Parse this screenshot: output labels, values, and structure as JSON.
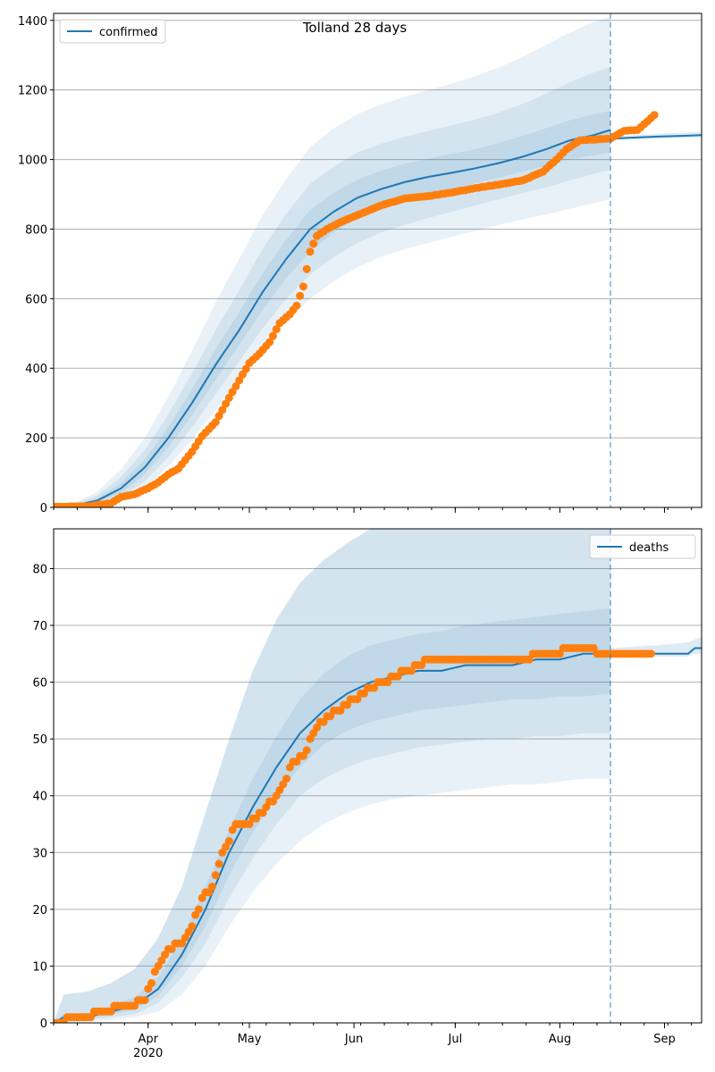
{
  "figure_title": "Tolland 28 days",
  "colors": {
    "model_line": "#1f77b4",
    "observed_points": "#ff7f0e",
    "band": "#1f77b4",
    "grid": "#b0b0b0",
    "forecast_marker": "#1f77b4"
  },
  "chart_data": [
    {
      "type": "line",
      "title": "",
      "xlabel": "",
      "ylabel": "",
      "x_axis": {
        "type": "date",
        "range": [
          "2020-03-04",
          "2020-09-12"
        ],
        "tick_labels": [
          "Apr",
          "May",
          "Jun",
          "Jul",
          "Aug",
          "Sep"
        ],
        "tick_dates": [
          "2020-04-01",
          "2020-05-01",
          "2020-06-01",
          "2020-07-01",
          "2020-08-01",
          "2020-09-01"
        ],
        "year_label": "2020",
        "forecast_start": "2020-08-16"
      },
      "ylim": [
        0,
        1420
      ],
      "y_ticks": [
        0,
        200,
        400,
        600,
        800,
        1000,
        1200,
        1400
      ],
      "grid": "horizontal",
      "legend": {
        "placement": "top-left",
        "entries": [
          "confirmed"
        ]
      },
      "model": {
        "name": "confirmed",
        "x": [
          "2020-03-04",
          "2020-03-10",
          "2020-03-17",
          "2020-03-24",
          "2020-03-31",
          "2020-04-07",
          "2020-04-14",
          "2020-04-21",
          "2020-04-28",
          "2020-05-05",
          "2020-05-12",
          "2020-05-19",
          "2020-05-26",
          "2020-06-02",
          "2020-06-09",
          "2020-06-16",
          "2020-06-23",
          "2020-06-30",
          "2020-07-07",
          "2020-07-14",
          "2020-07-21",
          "2020-07-28",
          "2020-08-04",
          "2020-08-11",
          "2020-08-16"
        ],
        "mid": [
          0,
          5,
          20,
          55,
          115,
          200,
          300,
          410,
          510,
          620,
          715,
          800,
          850,
          890,
          915,
          935,
          950,
          962,
          975,
          990,
          1008,
          1030,
          1055,
          1070,
          1085
        ],
        "band1": {
          "low": [
            0,
            3,
            14,
            42,
            95,
            172,
            265,
            368,
            468,
            568,
            660,
            735,
            790,
            832,
            860,
            882,
            900,
            915,
            932,
            948,
            965,
            982,
            1000,
            1012,
            1020
          ],
          "high": [
            0,
            7,
            27,
            70,
            138,
            232,
            340,
            455,
            562,
            675,
            770,
            855,
            905,
            942,
            968,
            988,
            1002,
            1016,
            1030,
            1048,
            1068,
            1090,
            1113,
            1130,
            1140
          ]
        },
        "band2": {
          "low": [
            0,
            2,
            9,
            30,
            75,
            145,
            230,
            325,
            420,
            515,
            600,
            670,
            720,
            760,
            790,
            812,
            832,
            850,
            868,
            886,
            904,
            920,
            940,
            958,
            970
          ],
          "high": [
            0,
            9,
            35,
            88,
            165,
            268,
            385,
            510,
            625,
            745,
            845,
            930,
            980,
            1020,
            1045,
            1065,
            1082,
            1098,
            1115,
            1135,
            1160,
            1190,
            1222,
            1250,
            1265
          ]
        },
        "band3": {
          "low": [
            0,
            1,
            5,
            20,
            55,
            118,
            195,
            280,
            370,
            455,
            535,
            600,
            650,
            690,
            720,
            742,
            760,
            778,
            795,
            812,
            828,
            842,
            858,
            875,
            885
          ],
          "high": [
            0,
            12,
            45,
            110,
            200,
            318,
            450,
            590,
            715,
            840,
            945,
            1035,
            1090,
            1130,
            1158,
            1180,
            1200,
            1218,
            1240,
            1265,
            1295,
            1330,
            1365,
            1395,
            1410
          ]
        }
      },
      "projection": {
        "x": [
          "2020-08-16",
          "2020-08-23",
          "2020-08-30",
          "2020-09-06",
          "2020-09-12"
        ],
        "value": [
          1060,
          1063,
          1066,
          1068,
          1070
        ],
        "low": [
          1055,
          1058,
          1060,
          1062,
          1063
        ],
        "high": [
          1066,
          1070,
          1074,
          1077,
          1080
        ]
      },
      "observed": {
        "x": [
          "2020-03-04",
          "2020-03-14",
          "2020-03-21",
          "2020-03-24",
          "2020-03-28",
          "2020-04-01",
          "2020-04-04",
          "2020-04-07",
          "2020-04-10",
          "2020-04-14",
          "2020-04-17",
          "2020-04-21",
          "2020-04-24",
          "2020-04-28",
          "2020-05-01",
          "2020-05-04",
          "2020-05-07",
          "2020-05-10",
          "2020-05-13",
          "2020-05-15",
          "2020-05-17",
          "2020-05-19",
          "2020-05-21",
          "2020-05-24",
          "2020-05-28",
          "2020-06-02",
          "2020-06-09",
          "2020-06-16",
          "2020-06-23",
          "2020-06-30",
          "2020-07-07",
          "2020-07-14",
          "2020-07-21",
          "2020-07-27",
          "2020-07-31",
          "2020-08-03",
          "2020-08-07",
          "2020-08-12",
          "2020-08-16",
          "2020-08-20",
          "2020-08-24",
          "2020-08-27",
          "2020-08-29"
        ],
        "y": [
          2,
          3,
          12,
          30,
          38,
          55,
          72,
          95,
          112,
          160,
          205,
          245,
          298,
          365,
          415,
          442,
          475,
          530,
          555,
          580,
          635,
          735,
          780,
          800,
          820,
          840,
          868,
          888,
          895,
          905,
          918,
          928,
          940,
          965,
          1000,
          1030,
          1055,
          1058,
          1060,
          1082,
          1085,
          1110,
          1128
        ]
      }
    },
    {
      "type": "line",
      "title": "",
      "xlabel": "",
      "ylabel": "",
      "x_axis": {
        "type": "date",
        "range": [
          "2020-03-04",
          "2020-09-12"
        ],
        "tick_labels": [
          "Apr",
          "May",
          "Jun",
          "Jul",
          "Aug",
          "Sep"
        ],
        "tick_dates": [
          "2020-04-01",
          "2020-05-01",
          "2020-06-01",
          "2020-07-01",
          "2020-08-01",
          "2020-09-01"
        ],
        "year_label": "2020",
        "forecast_start": "2020-08-16"
      },
      "ylim": [
        0,
        87
      ],
      "y_ticks": [
        0,
        10,
        20,
        30,
        40,
        50,
        60,
        70,
        80
      ],
      "grid": "horizontal",
      "legend": {
        "placement": "top-right",
        "entries": [
          "deaths"
        ]
      },
      "model": {
        "name": "deaths",
        "x": [
          "2020-03-04",
          "2020-03-07",
          "2020-03-14",
          "2020-03-21",
          "2020-03-28",
          "2020-04-04",
          "2020-04-11",
          "2020-04-18",
          "2020-04-25",
          "2020-05-02",
          "2020-05-09",
          "2020-05-16",
          "2020-05-23",
          "2020-05-30",
          "2020-06-06",
          "2020-06-13",
          "2020-06-20",
          "2020-06-27",
          "2020-07-04",
          "2020-07-11",
          "2020-07-18",
          "2020-07-25",
          "2020-08-01",
          "2020-08-08",
          "2020-08-16"
        ],
        "mid": [
          0,
          1,
          1,
          2,
          3,
          6,
          12,
          20,
          30,
          38,
          45,
          51,
          55,
          58,
          60,
          61,
          62,
          62,
          63,
          63,
          63,
          64,
          64,
          65,
          65
        ],
        "band1": {
          "low": [
            0,
            0.6,
            0.8,
            1.5,
            2.3,
            4.8,
            10,
            17,
            26,
            33.5,
            40,
            45,
            49,
            51.5,
            53,
            54,
            55,
            55.5,
            56,
            56.5,
            57,
            57,
            57.5,
            57.5,
            58
          ],
          "high": [
            0,
            1.5,
            1.8,
            3,
            4.5,
            8,
            15,
            24,
            34,
            43,
            50.5,
            57,
            61.5,
            64.5,
            66.5,
            67.5,
            68.5,
            69,
            70,
            70.5,
            71,
            71.5,
            72,
            72.5,
            73
          ]
        },
        "band2": {
          "low": [
            0,
            0.3,
            0.5,
            1,
            1.5,
            3.5,
            8,
            14,
            22,
            29,
            35,
            40,
            43,
            45,
            46.5,
            47.5,
            48.5,
            49,
            49.5,
            50,
            50,
            50.5,
            50.5,
            51,
            51
          ]
        },
        "band3": {
          "low": [
            0,
            0,
            0.2,
            0.5,
            1,
            2,
            5,
            10,
            17,
            23,
            28,
            32,
            35,
            37,
            38.5,
            39.5,
            40,
            40.5,
            41,
            41.5,
            42,
            42,
            42.5,
            43,
            43
          ],
          "high": [
            0,
            5,
            5.5,
            7,
            9.5,
            15,
            24,
            37,
            50,
            62,
            71,
            77.5,
            81.5,
            84.5,
            87,
            87,
            87,
            87,
            87,
            87,
            87,
            87,
            87,
            87,
            87
          ]
        }
      },
      "projection": {
        "x": [
          "2020-08-16",
          "2020-08-30",
          "2020-09-08",
          "2020-09-10",
          "2020-09-12"
        ],
        "value": [
          65,
          65,
          65,
          66,
          66
        ],
        "low": [
          64.5,
          64.5,
          64.5,
          65,
          65
        ],
        "high": [
          66,
          66.5,
          67,
          67.5,
          68
        ]
      },
      "observed": {
        "x": [
          "2020-03-04",
          "2020-03-20",
          "2020-03-23",
          "2020-03-27",
          "2020-03-31",
          "2020-04-02",
          "2020-04-04",
          "2020-04-07",
          "2020-04-11",
          "2020-04-14",
          "2020-04-17",
          "2020-04-20",
          "2020-04-23",
          "2020-04-25",
          "2020-04-27",
          "2020-05-01",
          "2020-05-03",
          "2020-05-06",
          "2020-05-09",
          "2020-05-12",
          "2020-05-14",
          "2020-05-17",
          "2020-05-20",
          "2020-05-24",
          "2020-05-28",
          "2020-06-01",
          "2020-06-06",
          "2020-06-10",
          "2020-06-13",
          "2020-06-17",
          "2020-06-23",
          "2020-07-01",
          "2020-07-11",
          "2020-07-20",
          "2020-07-28",
          "2020-08-06",
          "2020-08-16",
          "2020-08-26",
          "2020-08-28"
        ],
        "y": [
          0,
          2,
          3,
          3,
          4,
          7,
          10,
          13,
          14,
          17,
          22,
          24,
          30,
          32,
          35,
          35,
          36,
          38,
          40,
          43,
          46,
          47,
          51,
          54,
          55,
          57,
          59,
          60,
          61,
          62,
          64,
          64,
          64,
          64,
          65,
          66,
          65,
          65,
          65
        ]
      }
    }
  ]
}
